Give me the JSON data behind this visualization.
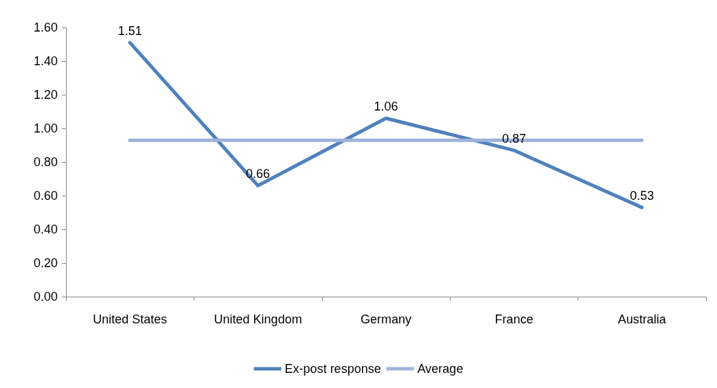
{
  "chart_data": {
    "type": "line",
    "categories": [
      "United States",
      "United Kingdom",
      "Germany",
      "France",
      "Australia"
    ],
    "series": [
      {
        "name": "Ex-post response",
        "color": "#4f81bd",
        "values": [
          1.51,
          0.66,
          1.06,
          0.87,
          0.53
        ],
        "value_labels": [
          "1.51",
          "0.66",
          "1.06",
          "0.87",
          "0.53"
        ]
      },
      {
        "name": "Average",
        "color": "#9db3db",
        "values": [
          0.93,
          0.93,
          0.93,
          0.93,
          0.93
        ]
      }
    ],
    "ylim": [
      0,
      1.6
    ],
    "yticks": [
      {
        "value": 0,
        "label": "0.00"
      },
      {
        "value": 0.2,
        "label": "0.20"
      },
      {
        "value": 0.4,
        "label": "0.40"
      },
      {
        "value": 0.6,
        "label": "0.60"
      },
      {
        "value": 0.8,
        "label": "0.80"
      },
      {
        "value": 1,
        "label": "1.00"
      },
      {
        "value": 1.2,
        "label": "1.20"
      },
      {
        "value": 1.4,
        "label": "1.40"
      },
      {
        "value": 1.6,
        "label": "1.60"
      }
    ],
    "grid": false,
    "legend": "bottom",
    "marker": "none",
    "line_style": "solid"
  }
}
